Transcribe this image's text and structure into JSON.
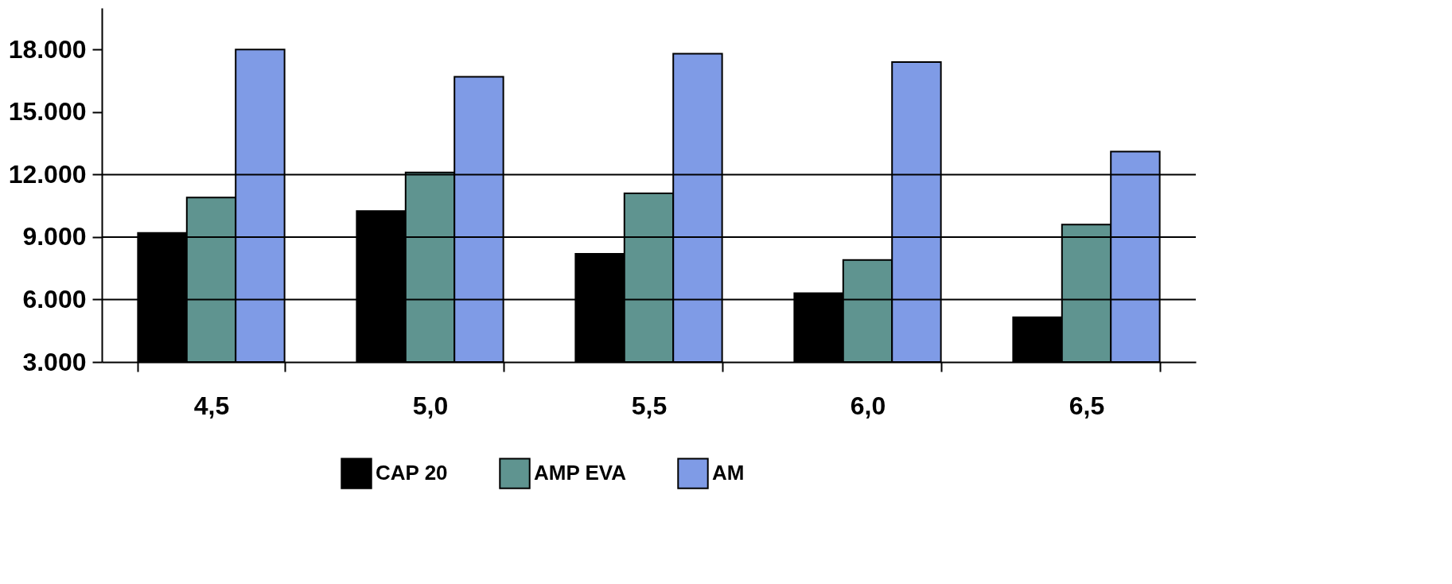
{
  "chart_data": {
    "type": "bar",
    "categories": [
      "4,5",
      "5,0",
      "5,5",
      "6,0",
      "6,5"
    ],
    "series": [
      {
        "name": "CAP 20",
        "color": "#000000",
        "values": [
          9200,
          10250,
          8200,
          6300,
          5150
        ]
      },
      {
        "name": "AMP EVA",
        "color": "#5f9490",
        "values": [
          10900,
          12100,
          11100,
          7900,
          9600
        ]
      },
      {
        "name": "AM",
        "color": "#7f9be6",
        "values": [
          18000,
          16700,
          17800,
          17400,
          13100
        ]
      }
    ],
    "ylim": [
      3000,
      20000
    ],
    "yticks": [
      {
        "value": 3000,
        "label": "3.000"
      },
      {
        "value": 6000,
        "label": "6.000"
      },
      {
        "value": 9000,
        "label": "9.000"
      },
      {
        "value": 12000,
        "label": "12.000"
      },
      {
        "value": 15000,
        "label": "15.000"
      },
      {
        "value": 18000,
        "label": "18.000"
      }
    ],
    "ref_lines": [
      {
        "axis": "y",
        "value": 6000
      },
      {
        "axis": "y",
        "value": 9000
      },
      {
        "axis": "y",
        "value": 12000
      }
    ],
    "legend": "bottom"
  }
}
